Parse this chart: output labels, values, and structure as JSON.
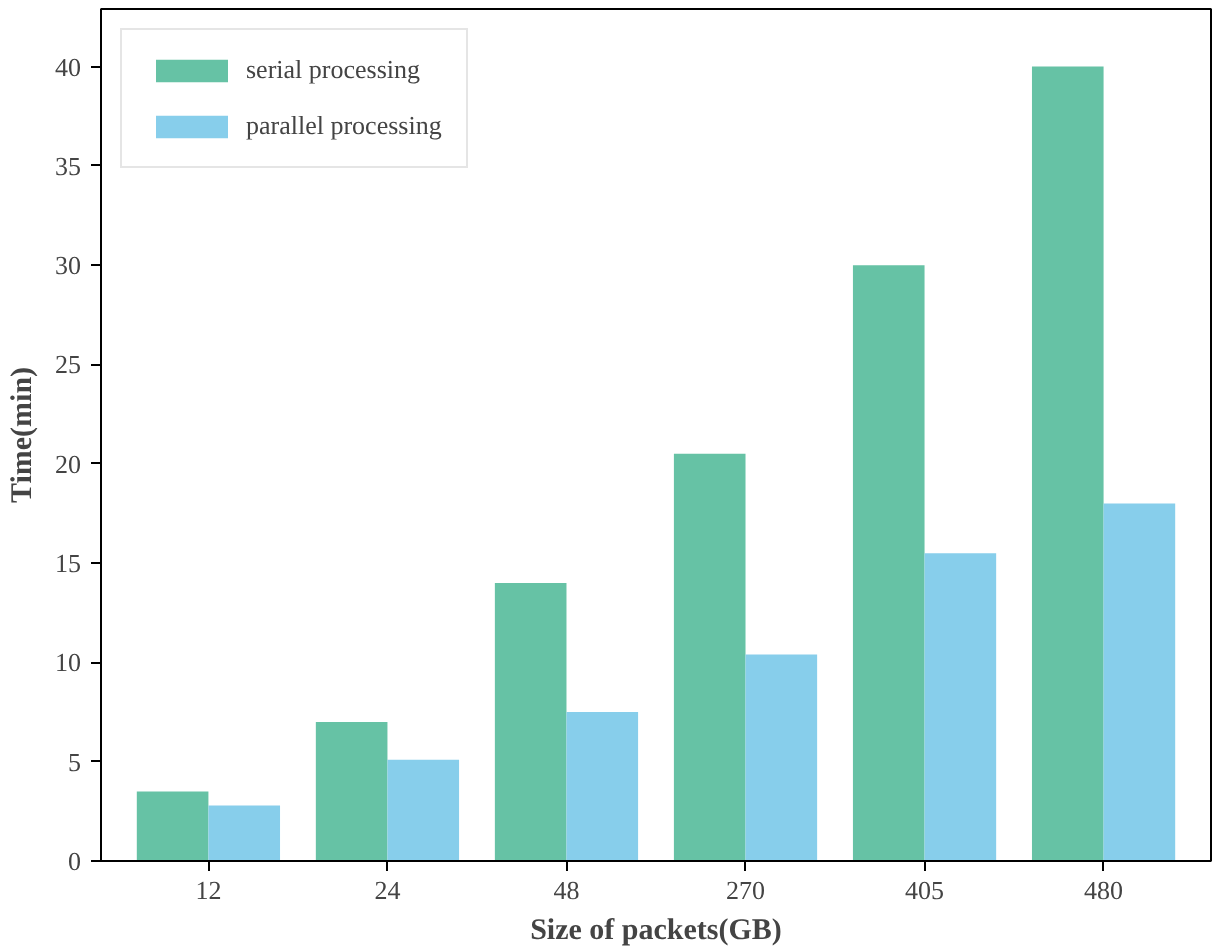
{
  "chart_data": {
    "type": "bar",
    "xlabel": "Size of packets(GB)",
    "ylabel": "Time(min)",
    "categories": [
      "12",
      "24",
      "48",
      "270",
      "405",
      "480"
    ],
    "series": [
      {
        "name": "serial processing",
        "color": "#66c2a5",
        "values": [
          3.5,
          7,
          14,
          20.5,
          30,
          40
        ]
      },
      {
        "name": "parallel processing",
        "color": "#87ceeb",
        "values": [
          2.8,
          5.1,
          7.5,
          10.4,
          15.5,
          18
        ]
      }
    ],
    "ylim": [
      0,
      42.9
    ],
    "yticks": [
      0,
      5,
      10,
      15,
      20,
      25,
      30,
      35,
      40
    ],
    "grid": false,
    "legend": "top left"
  }
}
